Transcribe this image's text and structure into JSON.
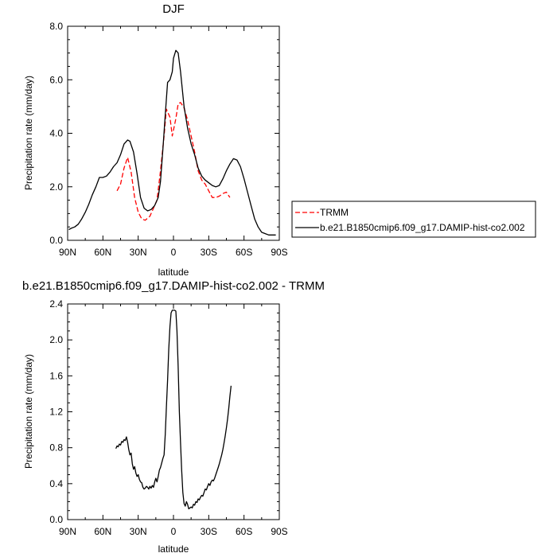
{
  "chart_data": [
    {
      "type": "line",
      "title": "DJF",
      "xlabel": "latitude",
      "ylabel": "Precipitation rate (mm/day)",
      "xlim": [
        90,
        -90
      ],
      "ylim": [
        0,
        8
      ],
      "x_ticks": [
        90,
        60,
        30,
        0,
        -30,
        -60,
        -90
      ],
      "x_tick_labels": [
        "90N",
        "60N",
        "30N",
        "0",
        "30S",
        "60S",
        "90S"
      ],
      "y_ticks": [
        0,
        2,
        4,
        6,
        8
      ],
      "y_tick_labels": [
        "0.0",
        "2.0",
        "4.0",
        "6.0",
        "8.0"
      ],
      "legend_position": "right",
      "series": [
        {
          "name": "TRMM",
          "color": "#ff0000",
          "dash": "dashed",
          "points": [
            [
              48,
              1.85
            ],
            [
              45,
              2.1
            ],
            [
              42,
              2.7
            ],
            [
              39,
              3.1
            ],
            [
              36,
              2.55
            ],
            [
              33,
              1.6
            ],
            [
              30,
              1.05
            ],
            [
              27,
              0.8
            ],
            [
              24,
              0.75
            ],
            [
              20,
              0.9
            ],
            [
              17,
              1.2
            ],
            [
              14,
              1.5
            ],
            [
              11,
              2.6
            ],
            [
              8,
              3.9
            ],
            [
              6,
              4.9
            ],
            [
              3,
              4.6
            ],
            [
              1,
              3.9
            ],
            [
              -2,
              4.55
            ],
            [
              -4,
              5.1
            ],
            [
              -6,
              5.15
            ],
            [
              -9,
              4.95
            ],
            [
              -12,
              4.5
            ],
            [
              -15,
              3.9
            ],
            [
              -18,
              3.3
            ],
            [
              -21,
              2.6
            ],
            [
              -24,
              2.25
            ],
            [
              -27,
              2.1
            ],
            [
              -30,
              1.85
            ],
            [
              -33,
              1.6
            ],
            [
              -36,
              1.6
            ],
            [
              -39,
              1.65
            ],
            [
              -42,
              1.75
            ],
            [
              -45,
              1.8
            ],
            [
              -48,
              1.6
            ]
          ]
        },
        {
          "name": "b.e21.B1850cmip6.f09_g17.DAMIP-hist-co2.002",
          "color": "#000000",
          "dash": "solid",
          "points": [
            [
              89,
              0.4
            ],
            [
              87,
              0.45
            ],
            [
              84,
              0.5
            ],
            [
              81,
              0.6
            ],
            [
              78,
              0.8
            ],
            [
              75,
              1.05
            ],
            [
              72,
              1.35
            ],
            [
              69,
              1.7
            ],
            [
              66,
              2.0
            ],
            [
              63,
              2.35
            ],
            [
              60,
              2.35
            ],
            [
              57,
              2.4
            ],
            [
              54,
              2.55
            ],
            [
              51,
              2.75
            ],
            [
              48,
              2.9
            ],
            [
              45,
              3.2
            ],
            [
              42,
              3.6
            ],
            [
              39,
              3.75
            ],
            [
              37,
              3.7
            ],
            [
              34,
              3.3
            ],
            [
              31,
              2.5
            ],
            [
              28,
              1.6
            ],
            [
              25,
              1.2
            ],
            [
              22,
              1.1
            ],
            [
              19,
              1.15
            ],
            [
              16,
              1.3
            ],
            [
              13,
              1.6
            ],
            [
              11,
              2.2
            ],
            [
              9,
              3.4
            ],
            [
              7,
              4.7
            ],
            [
              5,
              5.9
            ],
            [
              3,
              6.0
            ],
            [
              1,
              6.3
            ],
            [
              0,
              6.8
            ],
            [
              -2,
              7.1
            ],
            [
              -4,
              7.0
            ],
            [
              -6,
              6.3
            ],
            [
              -9,
              5.0
            ],
            [
              -12,
              4.2
            ],
            [
              -15,
              3.6
            ],
            [
              -18,
              3.2
            ],
            [
              -21,
              2.7
            ],
            [
              -24,
              2.4
            ],
            [
              -27,
              2.25
            ],
            [
              -30,
              2.15
            ],
            [
              -33,
              2.05
            ],
            [
              -36,
              2.0
            ],
            [
              -39,
              2.05
            ],
            [
              -42,
              2.3
            ],
            [
              -45,
              2.6
            ],
            [
              -48,
              2.85
            ],
            [
              -51,
              3.05
            ],
            [
              -54,
              3.0
            ],
            [
              -57,
              2.75
            ],
            [
              -60,
              2.3
            ],
            [
              -63,
              1.8
            ],
            [
              -66,
              1.3
            ],
            [
              -69,
              0.8
            ],
            [
              -72,
              0.5
            ],
            [
              -75,
              0.3
            ],
            [
              -78,
              0.25
            ],
            [
              -81,
              0.2
            ],
            [
              -84,
              0.2
            ],
            [
              -87,
              0.2
            ]
          ]
        }
      ]
    },
    {
      "type": "line",
      "title": "b.e21.B1850cmip6.f09_g17.DAMIP-hist-co2.002 - TRMM",
      "xlabel": "latitude",
      "ylabel": "Precipitation rate (mm/day)",
      "xlim": [
        90,
        -90
      ],
      "ylim": [
        0,
        2.4
      ],
      "x_ticks": [
        90,
        60,
        30,
        0,
        -30,
        -60,
        -90
      ],
      "x_tick_labels": [
        "90N",
        "60N",
        "30N",
        "0",
        "30S",
        "60S",
        "90S"
      ],
      "y_ticks": [
        0,
        0.4,
        0.8,
        1.2,
        1.6,
        2.0,
        2.4
      ],
      "y_tick_labels": [
        "0.0",
        "0.4",
        "0.8",
        "1.2",
        "1.6",
        "2.0",
        "2.4"
      ],
      "series": [
        {
          "color": "#000000",
          "dash": "solid",
          "points": [
            [
              49,
              0.79
            ],
            [
              48,
              0.82
            ],
            [
              47,
              0.81
            ],
            [
              46,
              0.84
            ],
            [
              45,
              0.83
            ],
            [
              44,
              0.87
            ],
            [
              43,
              0.86
            ],
            [
              42,
              0.89
            ],
            [
              41,
              0.88
            ],
            [
              40,
              0.92
            ],
            [
              39,
              0.86
            ],
            [
              38,
              0.78
            ],
            [
              37,
              0.72
            ],
            [
              36,
              0.74
            ],
            [
              35,
              0.62
            ],
            [
              34,
              0.56
            ],
            [
              33,
              0.59
            ],
            [
              32,
              0.52
            ],
            [
              31,
              0.48
            ],
            [
              30,
              0.5
            ],
            [
              29,
              0.45
            ],
            [
              28,
              0.42
            ],
            [
              27,
              0.41
            ],
            [
              26,
              0.36
            ],
            [
              25,
              0.34
            ],
            [
              24,
              0.35
            ],
            [
              23,
              0.37
            ],
            [
              22,
              0.36
            ],
            [
              21,
              0.34
            ],
            [
              20,
              0.37
            ],
            [
              19,
              0.35
            ],
            [
              18,
              0.38
            ],
            [
              17,
              0.36
            ],
            [
              16,
              0.42
            ],
            [
              15,
              0.46
            ],
            [
              14,
              0.42
            ],
            [
              13,
              0.48
            ],
            [
              12,
              0.55
            ],
            [
              11,
              0.58
            ],
            [
              10,
              0.63
            ],
            [
              9,
              0.68
            ],
            [
              8,
              0.72
            ],
            [
              7,
              0.95
            ],
            [
              6,
              1.25
            ],
            [
              5,
              1.55
            ],
            [
              4,
              1.9
            ],
            [
              3,
              2.15
            ],
            [
              2,
              2.3
            ],
            [
              1,
              2.33
            ],
            [
              0,
              2.33
            ],
            [
              -1,
              2.33
            ],
            [
              -2,
              2.32
            ],
            [
              -3,
              2.1
            ],
            [
              -4,
              1.7
            ],
            [
              -5,
              1.2
            ],
            [
              -6,
              0.85
            ],
            [
              -7,
              0.55
            ],
            [
              -8,
              0.3
            ],
            [
              -9,
              0.18
            ],
            [
              -10,
              0.15
            ],
            [
              -11,
              0.2
            ],
            [
              -12,
              0.17
            ],
            [
              -13,
              0.12
            ],
            [
              -14,
              0.13
            ],
            [
              -15,
              0.14
            ],
            [
              -16,
              0.13
            ],
            [
              -17,
              0.17
            ],
            [
              -18,
              0.16
            ],
            [
              -19,
              0.2
            ],
            [
              -20,
              0.19
            ],
            [
              -21,
              0.23
            ],
            [
              -22,
              0.22
            ],
            [
              -23,
              0.25
            ],
            [
              -24,
              0.27
            ],
            [
              -25,
              0.26
            ],
            [
              -26,
              0.3
            ],
            [
              -27,
              0.34
            ],
            [
              -28,
              0.33
            ],
            [
              -29,
              0.37
            ],
            [
              -30,
              0.4
            ],
            [
              -31,
              0.38
            ],
            [
              -32,
              0.42
            ],
            [
              -33,
              0.44
            ],
            [
              -34,
              0.43
            ],
            [
              -35,
              0.46
            ],
            [
              -36,
              0.5
            ],
            [
              -37,
              0.54
            ],
            [
              -38,
              0.58
            ],
            [
              -39,
              0.62
            ],
            [
              -40,
              0.67
            ],
            [
              -41,
              0.72
            ],
            [
              -42,
              0.78
            ],
            [
              -43,
              0.85
            ],
            [
              -44,
              0.93
            ],
            [
              -45,
              1.02
            ],
            [
              -46,
              1.12
            ],
            [
              -47,
              1.24
            ],
            [
              -48,
              1.37
            ],
            [
              -49,
              1.49
            ]
          ]
        }
      ]
    }
  ]
}
